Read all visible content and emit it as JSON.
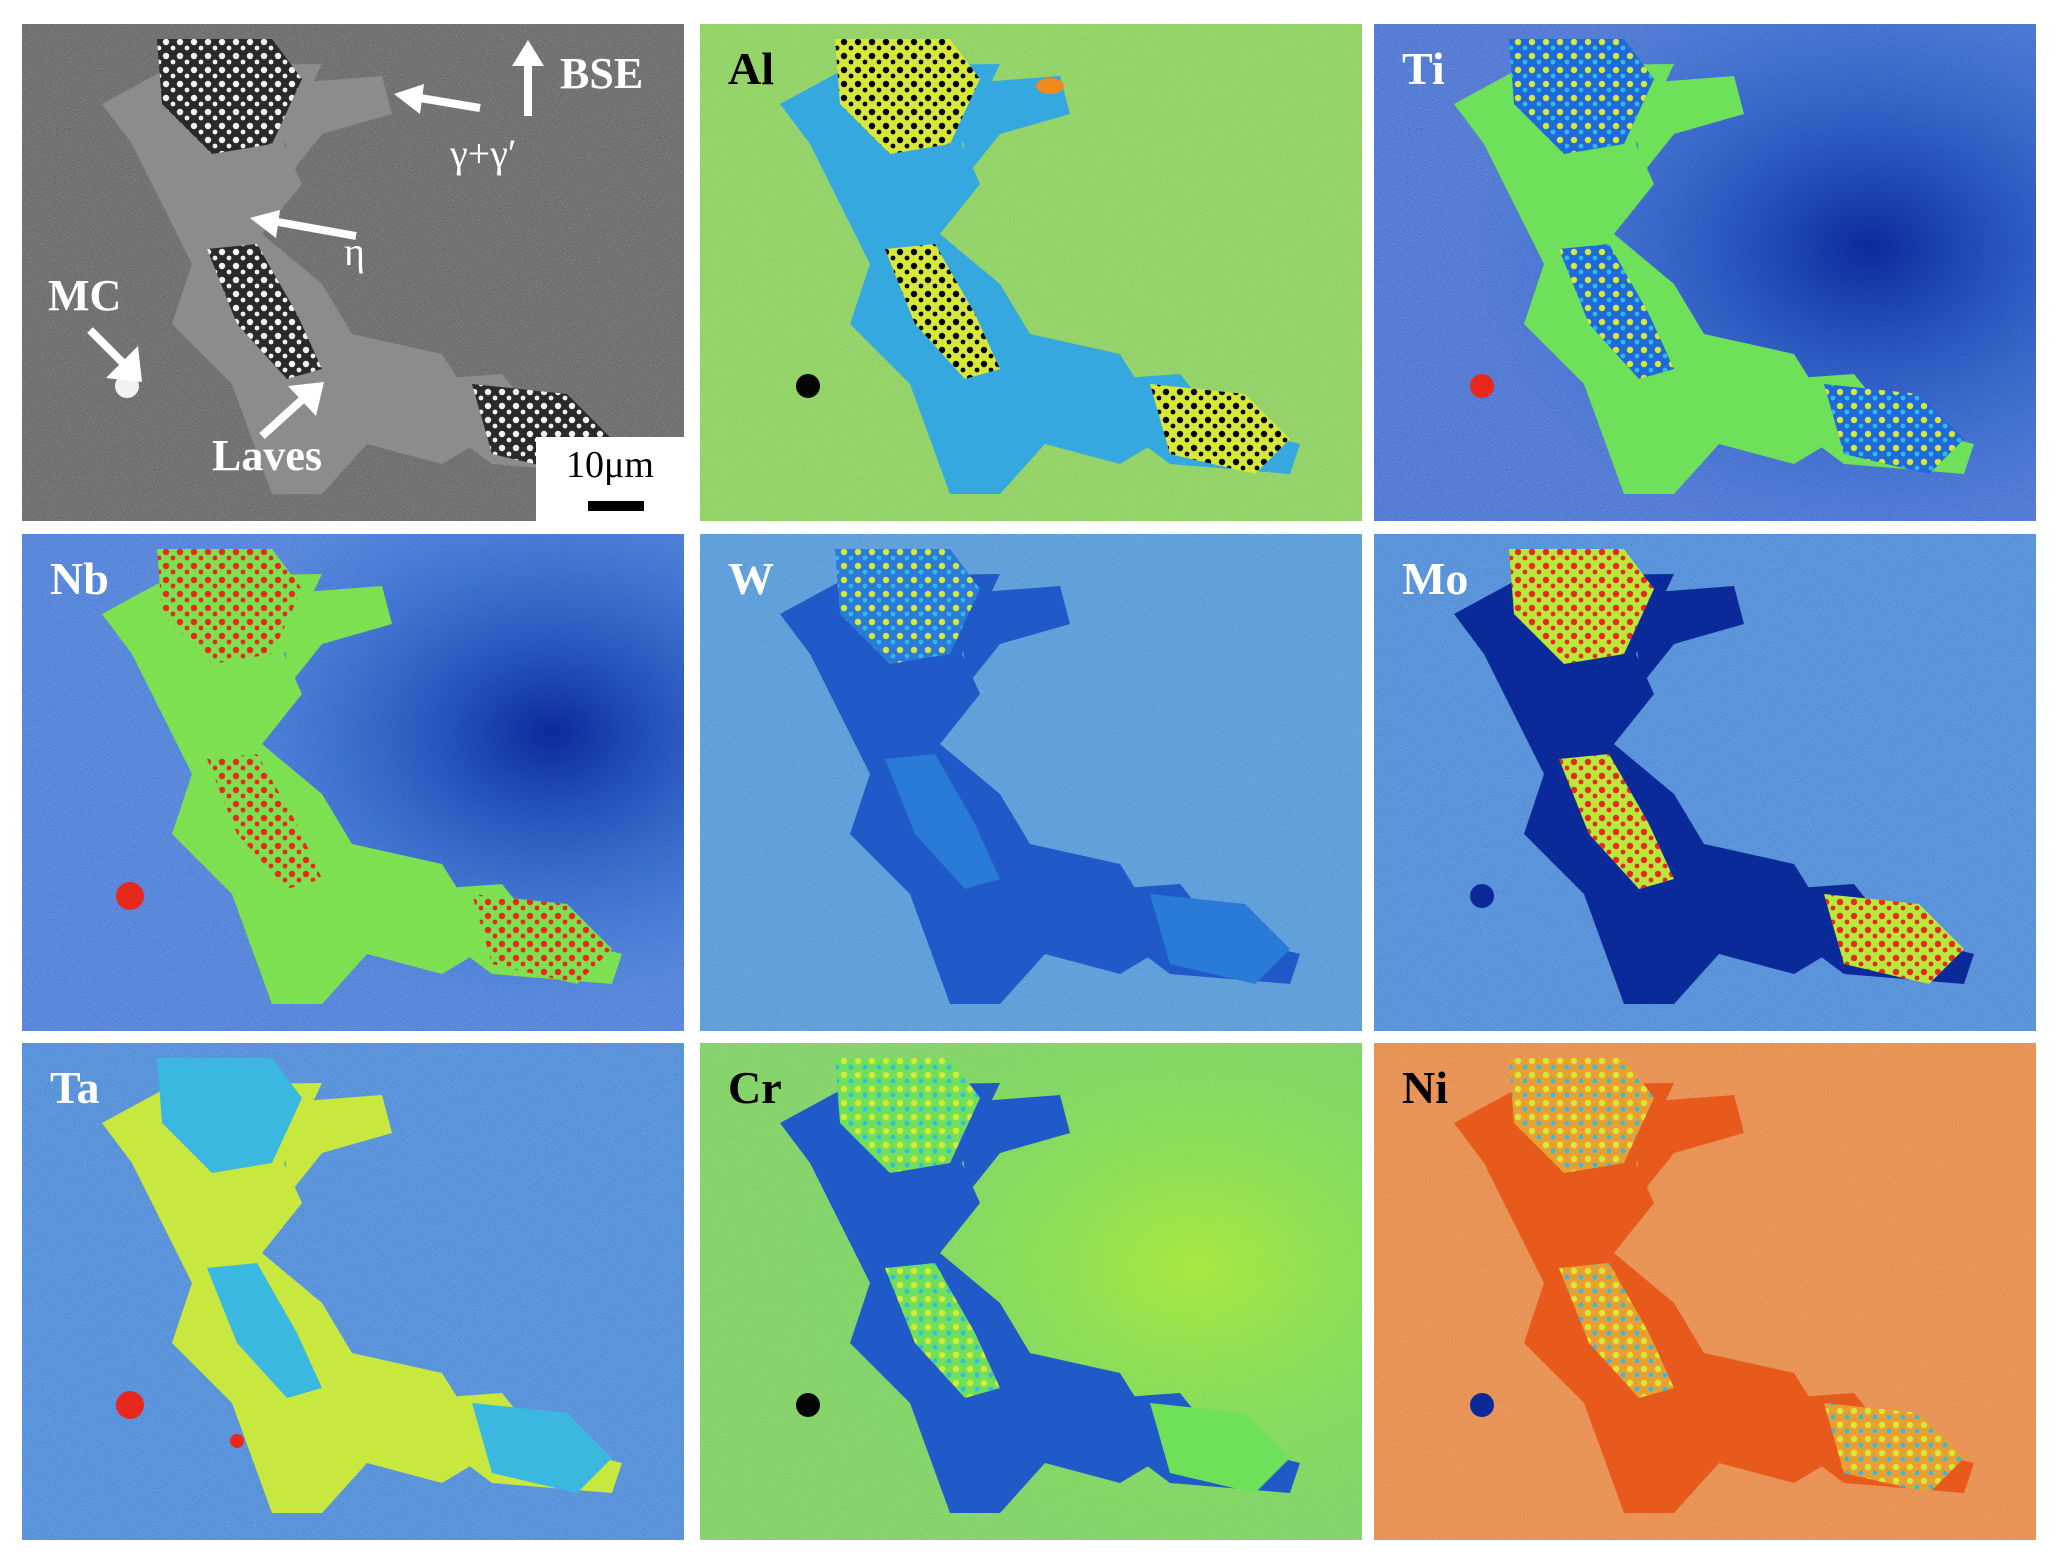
{
  "colors": {
    "bse_bg": "#5a5a5a",
    "phase_eta": "#8c8c8c",
    "laves": "#e8e8e8",
    "jet_dark_blue": "#0a2a9a",
    "jet_blue": "#1f6ad9",
    "jet_cyan": "#35b8e8",
    "jet_green": "#6fe05a",
    "jet_yellow_green": "#b8e83a",
    "jet_orange": "#f08a1e",
    "jet_red": "#e8281c"
  },
  "panels": [
    {
      "id": "bse",
      "label": "BSE",
      "label_color": "white"
    },
    {
      "id": "al",
      "label": "Al",
      "label_color": "black"
    },
    {
      "id": "ti",
      "label": "Ti",
      "label_color": "white"
    },
    {
      "id": "nb",
      "label": "Nb",
      "label_color": "white"
    },
    {
      "id": "w",
      "label": "W",
      "label_color": "white"
    },
    {
      "id": "mo",
      "label": "Mo",
      "label_color": "white"
    },
    {
      "id": "ta",
      "label": "Ta",
      "label_color": "white"
    },
    {
      "id": "cr",
      "label": "Cr",
      "label_color": "black"
    },
    {
      "id": "ni",
      "label": "Ni",
      "label_color": "black"
    }
  ],
  "annotations": {
    "gamma": "γ+γ′",
    "eta": "η",
    "mc": "MC",
    "laves": "Laves"
  },
  "scale_bar": "10μm",
  "icons": [
    "arrow-icon"
  ]
}
